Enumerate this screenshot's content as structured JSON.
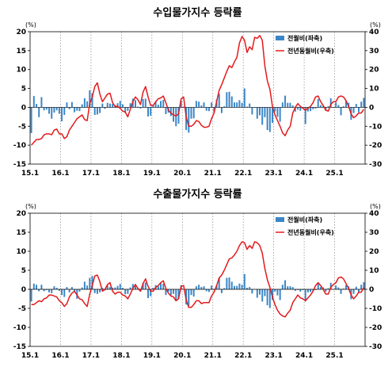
{
  "chart_data": [
    {
      "type": "bar+line",
      "title": "수입물가지수 등락률",
      "left_unit": "(%)",
      "right_unit": "(%)",
      "left_ylim": [
        -15,
        20
      ],
      "right_ylim": [
        -30,
        40
      ],
      "left_ticks": [
        -15,
        -10,
        -5,
        0,
        5,
        10,
        15,
        20
      ],
      "right_ticks": [
        -30,
        -20,
        -10,
        0,
        10,
        20,
        30,
        40
      ],
      "x_ticks": [
        "15.1",
        "16.1",
        "17.1",
        "18.1",
        "19.1",
        "20.1",
        "21.1",
        "22.1",
        "23.1",
        "24.1",
        "25.1"
      ],
      "legend": [
        "전월비(좌축)",
        "전년동월비(우축)"
      ],
      "months": 132,
      "bars_mom": [
        -6.8,
        3.0,
        0.9,
        -2.6,
        2.7,
        -0.8,
        -0.6,
        -1.7,
        -3.0,
        -1.4,
        -0.8,
        -1.7,
        -3.7,
        -2.0,
        1.3,
        -0.5,
        1.4,
        -1.3,
        -0.9,
        -1.0,
        0.8,
        2.4,
        1.6,
        4.5,
        3.7,
        -2.0,
        -1.9,
        -1.5,
        1.0,
        -0.4,
        1.2,
        1.0,
        0.9,
        0.6,
        1.1,
        1.7,
        0.8,
        -1.4,
        -0.9,
        1.1,
        2.3,
        1.9,
        0.2,
        -0.3,
        2.2,
        2.3,
        -2.4,
        -2.2,
        0.4,
        1.5,
        0.7,
        1.7,
        2.0,
        -1.8,
        -1.4,
        -2.3,
        -3.8,
        -5.0,
        -4.3,
        1.8,
        0.2,
        -6.0,
        -6.7,
        -3.0,
        -2.9,
        1.7,
        1.5,
        0.5,
        1.3,
        -0.9,
        -1.0,
        1.3,
        -1.2,
        2.1,
        3.6,
        -1.5,
        0.3,
        4.0,
        4.1,
        2.9,
        1.3,
        1.3,
        1.9,
        1.2,
        5.0,
        0.2,
        1.0,
        -1.9,
        0.0,
        -3.0,
        -2.1,
        -4.6,
        -2.6,
        -6.0,
        -6.5,
        -4.1,
        -1.1,
        -2.5,
        -3.8,
        1.3,
        3.1,
        1.2,
        1.2,
        0.5,
        -1.1,
        -0.6,
        -0.9,
        -0.1,
        -4.4,
        -1.1,
        -1.0,
        -0.5,
        -0.3,
        2.2,
        0.6,
        0.4,
        -0.9,
        0.3,
        2.4,
        0.0,
        1.3,
        0.6,
        -2.1,
        0.3,
        1.7,
        1.2,
        -3.3,
        -1.5,
        0.9,
        -1.3,
        1.5,
        2.5
      ],
      "line_yoy": [
        -20.0,
        -18.5,
        -17.0,
        -17.0,
        -16.5,
        -14.5,
        -14.0,
        -14.0,
        -14.5,
        -12.0,
        -11.5,
        -14.0,
        -14.0,
        -16.5,
        -15.5,
        -12.0,
        -10.0,
        -8.0,
        -6.0,
        -5.0,
        -4.0,
        -6.5,
        -7.0,
        2.0,
        5.5,
        11.0,
        13.0,
        7.0,
        3.0,
        5.0,
        7.0,
        7.5,
        2.5,
        0.5,
        0.5,
        -0.5,
        -2.0,
        -2.5,
        -5.0,
        -1.0,
        3.0,
        5.5,
        4.0,
        1.5,
        8.0,
        11.0,
        5.5,
        1.0,
        1.0,
        3.0,
        4.5,
        5.0,
        6.0,
        2.5,
        -1.5,
        -3.0,
        -4.0,
        -4.5,
        -3.5,
        4.5,
        5.5,
        -5.0,
        -10.0,
        -10.0,
        -9.0,
        -7.0,
        -7.5,
        -9.5,
        -10.5,
        -10.5,
        -10.0,
        -6.0,
        -3.0,
        3.0,
        9.0,
        12.0,
        15.5,
        19.0,
        22.0,
        21.0,
        24.0,
        26.5,
        34.0,
        37.5,
        35.5,
        29.0,
        32.0,
        30.5,
        37.0,
        36.5,
        38.0,
        35.5,
        22.0,
        14.0,
        9.5,
        0.5,
        -4.0,
        -7.0,
        -10.0,
        -13.5,
        -15.0,
        -12.0,
        -10.0,
        -3.0,
        0.0,
        2.0,
        0.5,
        -0.5,
        -1.5,
        -0.5,
        0.5,
        2.5,
        5.5,
        6.0,
        3.0,
        1.0,
        -1.5,
        -2.0,
        1.5,
        3.0,
        3.0,
        5.5,
        6.0,
        5.5,
        3.5,
        0.5,
        -3.5,
        -5.5,
        -4.5,
        -3.0,
        -3.0,
        -1.0
      ]
    },
    {
      "type": "bar+line",
      "title": "수출물가지수 등락률",
      "left_unit": "(%)",
      "right_unit": "(%)",
      "left_ylim": [
        -15,
        20
      ],
      "right_ylim": [
        -30,
        40
      ],
      "left_ticks": [
        -15,
        -10,
        -5,
        0,
        5,
        10,
        15,
        20
      ],
      "right_ticks": [
        -30,
        -20,
        -10,
        0,
        10,
        20,
        30,
        40
      ],
      "x_ticks": [
        "15.1",
        "16.1",
        "17.1",
        "18.1",
        "19.1",
        "20.1",
        "21.1",
        "22.1",
        "23.1",
        "24.1",
        "25.1"
      ],
      "legend": [
        "전월비(좌축)",
        "전년동월비(우축)"
      ],
      "months": 132,
      "bars_mom": [
        -3.2,
        1.5,
        1.2,
        -0.5,
        1.2,
        -0.5,
        -0.2,
        -0.8,
        -1.0,
        0.8,
        0.4,
        -0.4,
        -1.5,
        -2.0,
        0.6,
        -0.8,
        0.6,
        -0.6,
        -2.5,
        -0.6,
        0.5,
        2.0,
        1.0,
        3.0,
        3.5,
        -1.0,
        -1.2,
        -0.8,
        0.4,
        -0.3,
        1.0,
        0.6,
        0.4,
        0.5,
        0.9,
        1.4,
        0.4,
        -1.3,
        -1.2,
        0.5,
        1.4,
        1.4,
        0.3,
        -0.6,
        1.7,
        1.8,
        -2.3,
        -1.8,
        0.4,
        1.1,
        0.8,
        1.6,
        1.5,
        -1.5,
        -0.6,
        -1.5,
        -1.2,
        -3.1,
        -2.4,
        1.1,
        0.1,
        -4.0,
        -4.4,
        -1.5,
        -1.9,
        0.8,
        1.2,
        0.6,
        0.8,
        -0.5,
        -0.7,
        1.0,
        -0.2,
        1.1,
        3.0,
        -1.0,
        0.3,
        3.0,
        3.1,
        2.0,
        0.9,
        0.9,
        1.5,
        1.2,
        4.0,
        0.4,
        0.6,
        -1.1,
        0.0,
        -2.2,
        -1.4,
        -3.2,
        -1.8,
        -4.2,
        -4.9,
        -2.8,
        -0.6,
        -1.6,
        -2.8,
        1.2,
        2.4,
        0.8,
        0.8,
        0.6,
        -0.4,
        -0.2,
        -0.6,
        -0.2,
        -3.2,
        -0.8,
        -0.7,
        -0.4,
        -0.2,
        1.5,
        0.6,
        0.5,
        -0.6,
        0.3,
        1.7,
        0.0,
        1.0,
        0.5,
        -1.2,
        0.2,
        1.1,
        0.8,
        -2.6,
        -1.2,
        0.7,
        -0.9,
        1.2,
        1.9
      ],
      "line_yoy": [
        -8.0,
        -8.0,
        -7.0,
        -6.0,
        -6.5,
        -5.0,
        -4.5,
        -3.0,
        -3.0,
        -3.5,
        -4.0,
        -6.0,
        -7.0,
        -9.0,
        -7.5,
        -4.0,
        -2.0,
        -1.0,
        -3.0,
        -5.0,
        -5.5,
        -7.5,
        -9.0,
        -2.5,
        2.0,
        7.0,
        7.5,
        4.0,
        -1.0,
        0.0,
        2.5,
        3.5,
        -1.0,
        -2.5,
        -1.5,
        -1.5,
        -3.0,
        -3.5,
        -5.0,
        -2.5,
        0.5,
        2.5,
        0.5,
        -1.0,
        3.0,
        5.5,
        1.5,
        -1.0,
        -1.0,
        1.0,
        2.0,
        3.5,
        4.5,
        0.5,
        -2.0,
        -3.5,
        -4.0,
        -6.0,
        -5.0,
        1.5,
        2.0,
        -5.5,
        -9.5,
        -9.5,
        -8.0,
        -6.0,
        -6.0,
        -7.5,
        -7.0,
        -7.0,
        -7.0,
        -3.5,
        -1.5,
        2.0,
        6.0,
        7.5,
        10.0,
        13.0,
        16.0,
        16.5,
        18.0,
        20.0,
        23.0,
        25.0,
        24.5,
        21.0,
        23.0,
        21.5,
        25.0,
        24.5,
        23.0,
        19.0,
        11.0,
        5.0,
        1.0,
        -4.0,
        -8.0,
        -11.0,
        -13.0,
        -14.0,
        -14.5,
        -12.5,
        -11.0,
        -7.0,
        -5.0,
        -3.0,
        -4.5,
        -5.0,
        -6.0,
        -4.5,
        -3.0,
        -1.0,
        2.0,
        3.5,
        2.0,
        0.0,
        -2.5,
        -2.5,
        1.0,
        2.5,
        3.5,
        6.0,
        6.5,
        5.5,
        3.0,
        0.5,
        -3.0,
        -5.0,
        -3.5,
        -1.5,
        -1.5,
        1.0
      ]
    }
  ],
  "colors": {
    "bar": "#3b86c6",
    "line": "#e31a1c",
    "gridline": "#888888",
    "axis": "#000000",
    "text": "#000000"
  }
}
